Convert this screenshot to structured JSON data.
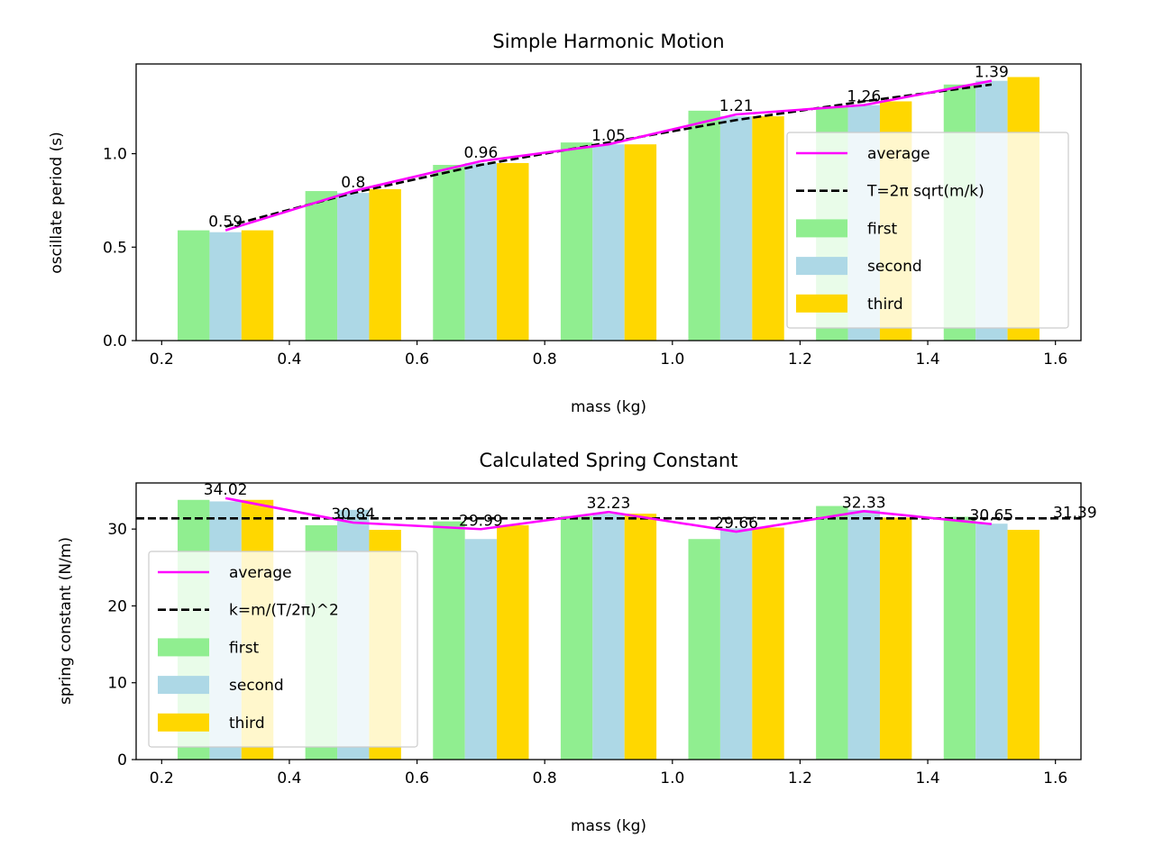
{
  "chart_data": [
    {
      "type": "bar",
      "title": "Simple Harmonic Motion",
      "xlabel": "mass (kg)",
      "ylabel": "oscillate period (s)",
      "x": [
        0.3,
        0.5,
        0.7,
        0.9,
        1.1,
        1.3,
        1.5
      ],
      "xlim": [
        0.16,
        1.64
      ],
      "ylim": [
        0,
        1.48
      ],
      "xticks": [
        "0.2",
        "0.4",
        "0.6",
        "0.8",
        "1.0",
        "1.2",
        "1.4",
        "1.6"
      ],
      "yticks": [
        "0.0",
        "0.5",
        "1.0"
      ],
      "series": [
        {
          "name": "first",
          "color": "#90ee90",
          "values": [
            0.59,
            0.8,
            0.94,
            1.06,
            1.23,
            1.25,
            1.37
          ]
        },
        {
          "name": "second",
          "color": "#add8e6",
          "values": [
            0.58,
            0.79,
            0.95,
            1.05,
            1.2,
            1.26,
            1.39
          ]
        },
        {
          "name": "third",
          "color": "#ffd700",
          "values": [
            0.59,
            0.81,
            0.95,
            1.05,
            1.2,
            1.28,
            1.41
          ]
        }
      ],
      "average": {
        "name": "average",
        "color": "#ff00ff",
        "values": [
          0.59,
          0.8,
          0.96,
          1.05,
          1.21,
          1.26,
          1.39
        ]
      },
      "data_labels": [
        "0.59",
        "0.8",
        "0.96",
        "1.05",
        "1.21",
        "1.26",
        "1.39"
      ],
      "model": {
        "name": "T=2π sqrt(m/k)",
        "values": [
          0.61,
          0.79,
          0.94,
          1.06,
          1.18,
          1.28,
          1.37
        ]
      },
      "legend_position": "lower right",
      "grid": false
    },
    {
      "type": "bar",
      "title": "Calculated Spring Constant",
      "xlabel": "mass (kg)",
      "ylabel": "spring constant (N/m)",
      "x": [
        0.3,
        0.5,
        0.7,
        0.9,
        1.1,
        1.3,
        1.5
      ],
      "xlim": [
        0.16,
        1.64
      ],
      "ylim": [
        0,
        36
      ],
      "xticks": [
        "0.2",
        "0.4",
        "0.6",
        "0.8",
        "1.0",
        "1.2",
        "1.4",
        "1.6"
      ],
      "yticks": [
        "0",
        "10",
        "20",
        "30"
      ],
      "series": [
        {
          "name": "first",
          "color": "#90ee90",
          "values": [
            33.8,
            30.5,
            31.0,
            31.7,
            28.7,
            33.0,
            31.6
          ]
        },
        {
          "name": "second",
          "color": "#add8e6",
          "values": [
            33.6,
            32.5,
            28.7,
            32.0,
            30.1,
            32.5,
            30.7
          ]
        },
        {
          "name": "third",
          "color": "#ffd700",
          "values": [
            33.8,
            29.9,
            30.5,
            32.0,
            30.2,
            31.5,
            29.9
          ]
        }
      ],
      "average": {
        "name": "average",
        "color": "#ff00ff",
        "values": [
          34.02,
          30.84,
          29.99,
          32.23,
          29.66,
          32.33,
          30.65
        ]
      },
      "data_labels": [
        "34.02",
        "30.84",
        "29.99",
        "32.23",
        "29.66",
        "32.33",
        "30.65"
      ],
      "model": {
        "name": "k=m/(T/2π)^2",
        "value": 31.39,
        "label": "31.39"
      },
      "legend_position": "lower left",
      "grid": false
    }
  ]
}
